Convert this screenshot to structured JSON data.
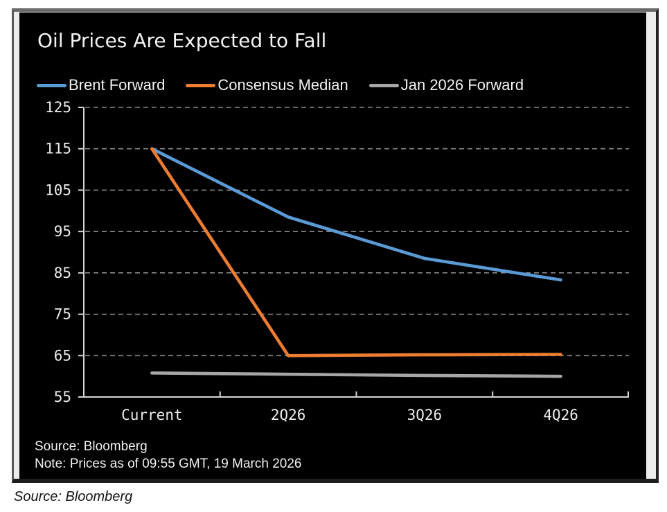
{
  "page": {
    "caption": "Source: Bloomberg"
  },
  "chart": {
    "title": "Oil Prices Are Expected to Fall",
    "footer": {
      "source": "Source: Bloomberg",
      "note": "Note: Prices as of 09:55 GMT, 19 March 2026"
    }
  },
  "chart_data": {
    "type": "line",
    "title": "Oil Prices Are Expected to Fall",
    "categories": [
      "Current",
      "2Q26",
      "3Q26",
      "4Q26"
    ],
    "series": [
      {
        "name": "Brent Forward",
        "color": "#5B9BD5",
        "values": [
          115,
          98.5,
          88.5,
          83.3
        ]
      },
      {
        "name": "Consensus Median",
        "color": "#ED7D31",
        "values": [
          115,
          65,
          65.2,
          65.3
        ]
      },
      {
        "name": "Jan 2026 Forward",
        "color": "#A6A6A6",
        "values": [
          60.8,
          60.5,
          60.2,
          60.0
        ]
      }
    ],
    "ylim": [
      55,
      125
    ],
    "y_ticks": [
      55,
      65,
      75,
      85,
      95,
      105,
      115,
      125
    ],
    "grid_step": 10,
    "grid": "dashed-horizontal",
    "legend_position": "top",
    "xlabel": "",
    "ylabel": "",
    "colors": {
      "background": "#000000",
      "grid": "#8a8a8a",
      "axis": "#d6d6d6",
      "text": "#ededed"
    }
  }
}
